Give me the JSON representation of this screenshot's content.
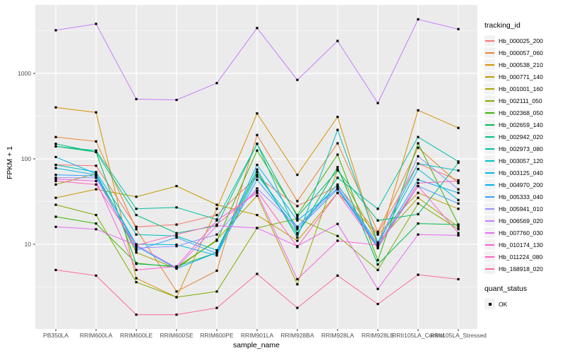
{
  "chart_data": {
    "type": "line",
    "title": "",
    "xlabel": "sample_name",
    "ylabel": "FPKM + 1",
    "y_scale": "log10",
    "y_ticks": [
      10,
      100,
      1000
    ],
    "ylim": [
      1.3,
      6300
    ],
    "grid": "on",
    "panel_bg": "#EBEBEB",
    "grid_color": "#FFFFFF",
    "tick_label_color": "#4D4D4D",
    "point_marker": "black-square",
    "point_color": "#000000",
    "categories": [
      "PB350LA",
      "RRIM600LA",
      "RRIM600LE",
      "RRIM600SE",
      "RRIM600PE",
      "RRIM901LA",
      "RRIM928BA",
      "RRIM928LA",
      "RRIM928LE",
      "RRII105LA_Control",
      "RRII105LA_Stressed"
    ],
    "legend": {
      "title": "tracking_id",
      "position": "right"
    },
    "quant_status": {
      "title": "quant_status",
      "items": [
        {
          "label": "OK",
          "marker": "black-square"
        }
      ]
    },
    "series": [
      {
        "name": "Hb_000025_200",
        "color": "#F8766D",
        "values": [
          85,
          83,
          16,
          17,
          22,
          62,
          28,
          48,
          13.5,
          88,
          56
        ]
      },
      {
        "name": "Hb_000057_060",
        "color": "#EA8331",
        "values": [
          180,
          160,
          15,
          2.8,
          4.9,
          190,
          32,
          152,
          14,
          135,
          52
        ]
      },
      {
        "name": "Hb_000538_210",
        "color": "#D89000",
        "values": [
          400,
          350,
          4,
          2.4,
          26,
          340,
          65,
          310,
          9.5,
          370,
          230
        ]
      },
      {
        "name": "Hb_000771_140",
        "color": "#C09B00",
        "values": [
          35,
          44,
          36,
          48,
          29,
          22,
          11,
          40,
          13,
          40,
          26
        ]
      },
      {
        "name": "Hb_001001_160",
        "color": "#A3A500",
        "values": [
          50,
          67,
          8,
          5.2,
          11.3,
          37,
          3.4,
          75,
          10.5,
          35,
          16
        ]
      },
      {
        "name": "Hb_002111_050",
        "color": "#7CAE00",
        "values": [
          29,
          22,
          3.6,
          2.4,
          2.8,
          15.5,
          20,
          12.5,
          5,
          30,
          15
        ]
      },
      {
        "name": "Hb_002368_050",
        "color": "#39B600",
        "values": [
          21,
          17.5,
          6,
          5.4,
          11,
          125,
          22,
          112,
          6.5,
          152,
          17
        ]
      },
      {
        "name": "Hb_002659_140",
        "color": "#00BB4E",
        "values": [
          140,
          120,
          5.9,
          5.5,
          8,
          70,
          13,
          80,
          5.8,
          17.5,
          17
        ]
      },
      {
        "name": "Hb_002942_020",
        "color": "#00BF7D",
        "values": [
          150,
          120,
          22,
          13.5,
          16.5,
          150,
          21,
          73,
          19,
          22.5,
          90
        ]
      },
      {
        "name": "Hb_002973_080",
        "color": "#00C1A3",
        "values": [
          140,
          125,
          26,
          27,
          19.5,
          150,
          13.5,
          60,
          26,
          180,
          93
        ]
      },
      {
        "name": "Hb_003057_120",
        "color": "#00BFC4",
        "values": [
          85,
          70,
          13,
          12.5,
          8.5,
          75,
          12,
          218,
          10.5,
          88,
          73
        ]
      },
      {
        "name": "Hb_003125_040",
        "color": "#00BAE0",
        "values": [
          78,
          65,
          10,
          9.9,
          7.4,
          65,
          16,
          50,
          10,
          76,
          33
        ]
      },
      {
        "name": "Hb_004970_200",
        "color": "#00B0F6",
        "values": [
          105,
          67,
          9.5,
          5.2,
          8,
          85,
          19,
          45,
          9.5,
          57,
          40
        ]
      },
      {
        "name": "Hb_005333_040",
        "color": "#35A2FF",
        "values": [
          65,
          63,
          8.5,
          12,
          7.8,
          57,
          15,
          44,
          9.2,
          48,
          30
        ]
      },
      {
        "name": "Hb_005941_010",
        "color": "#9590FF",
        "values": [
          60,
          60,
          9,
          9.5,
          13,
          45,
          16,
          46,
          10,
          107,
          44
        ]
      },
      {
        "name": "Hb_006569_020",
        "color": "#C77CFF",
        "values": [
          3200,
          3800,
          500,
          490,
          770,
          3400,
          840,
          2400,
          450,
          4300,
          3300
        ]
      },
      {
        "name": "Hb_007760_030",
        "color": "#E76BF3",
        "values": [
          16,
          15,
          9.8,
          5.3,
          16.5,
          15.5,
          9.5,
          17.3,
          3,
          13,
          12.7
        ]
      },
      {
        "name": "Hb_010174_130",
        "color": "#FA62DB",
        "values": [
          58,
          55,
          5,
          5.5,
          19,
          40,
          3.9,
          11,
          9.8,
          48,
          13.5
        ]
      },
      {
        "name": "Hb_011224_080",
        "color": "#FF62BC",
        "values": [
          55,
          50,
          9.7,
          13,
          17,
          42,
          9.3,
          40,
          9,
          52,
          55
        ]
      },
      {
        "name": "Hb_168918_020",
        "color": "#FF6A98",
        "values": [
          5,
          4.3,
          1.5,
          1.5,
          1.8,
          4.5,
          1.8,
          4.3,
          2,
          4.4,
          3.9
        ]
      }
    ]
  }
}
